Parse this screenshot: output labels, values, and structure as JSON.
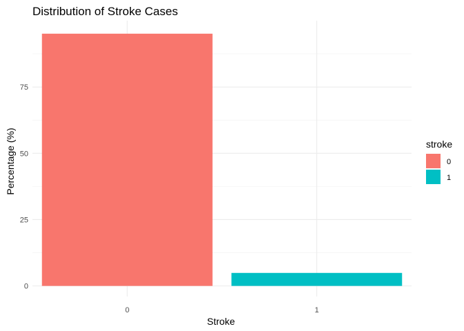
{
  "chart_data": {
    "type": "bar",
    "title": "Distribution of Stroke Cases",
    "xlabel": "Stroke",
    "ylabel": "Percentage (%)",
    "categories": [
      "0",
      "1"
    ],
    "values": [
      95.1,
      4.9
    ],
    "colors": [
      "#F8766D",
      "#00BFC4"
    ],
    "ylim": [
      -4,
      100
    ],
    "yticks": [
      0,
      25,
      50,
      75
    ],
    "grid": true,
    "legend": {
      "title": "stroke",
      "placement": "right",
      "entries": [
        {
          "label": "0",
          "color": "#F8766D"
        },
        {
          "label": "1",
          "color": "#00BFC4"
        }
      ]
    }
  }
}
